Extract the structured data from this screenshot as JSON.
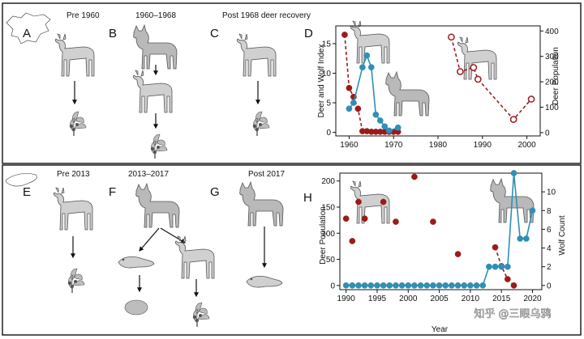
{
  "top_section": {
    "panels": [
      {
        "letter": "A",
        "title": "Pre 1960"
      },
      {
        "letter": "B",
        "title": "1960–1968"
      },
      {
        "letter": "C",
        "title": "Post 1968 deer recovery"
      }
    ],
    "chart_letter": "D"
  },
  "bottom_section": {
    "panels": [
      {
        "letter": "E",
        "title": "Pre 2013"
      },
      {
        "letter": "F",
        "title": "2013–2017"
      },
      {
        "letter": "G",
        "title": "Post 2017"
      }
    ],
    "chart_letter": "H"
  },
  "watermark": "知乎 @三眼乌鸦",
  "colors": {
    "deer": "#9b1b1b",
    "wolf": "#2f8fb5",
    "frame": "#111111"
  },
  "chart_data": [
    {
      "id": "D",
      "type": "scatter",
      "title": "",
      "xlabel": "",
      "ylabel_left": "Deer and Wolf Index",
      "ylabel_right": "Deer Population",
      "xlim": [
        1957,
        2003
      ],
      "ylim_left": [
        -0.6,
        18
      ],
      "ylim_right": [
        -13,
        420
      ],
      "x_ticks": [
        1960,
        1970,
        1980,
        1990,
        2000
      ],
      "y_ticks_left": [
        0,
        5,
        10,
        15
      ],
      "y_ticks_right": [
        0,
        100,
        200,
        300,
        400
      ],
      "series": [
        {
          "role": "deer",
          "axis": "left",
          "style": "filled-dashed",
          "x": [
            1959,
            1960,
            1961,
            1962,
            1963,
            1964,
            1965,
            1966,
            1967,
            1968,
            1969,
            1970,
            1971
          ],
          "y": [
            16.5,
            7.5,
            6,
            4,
            0.2,
            0.2,
            0.1,
            0.1,
            0.1,
            0.1,
            0.1,
            0.1,
            0.1
          ]
        },
        {
          "role": "wolf",
          "axis": "left",
          "style": "filled-solid",
          "x": [
            1960,
            1961,
            1963,
            1964,
            1965,
            1966,
            1967,
            1968,
            1969,
            1971
          ],
          "y": [
            4,
            5,
            11,
            13,
            11,
            3,
            2,
            1,
            0.3,
            0.8
          ]
        },
        {
          "role": "deer",
          "axis": "right",
          "style": "open-dashed",
          "x": [
            1983,
            1985,
            1988,
            1989,
            1997,
            2001
          ],
          "y": [
            376,
            240,
            256,
            210,
            52,
            132
          ]
        }
      ]
    },
    {
      "id": "H",
      "type": "scatter",
      "title": "",
      "xlabel": "Year",
      "ylabel_left": "Deer Population",
      "ylabel_right": "Wolf Count",
      "xlim": [
        1989,
        2021.5
      ],
      "ylim_left": [
        -8,
        215
      ],
      "ylim_right": [
        -0.45,
        12
      ],
      "x_ticks": [
        1990,
        1995,
        2000,
        2005,
        2010,
        2015,
        2020
      ],
      "y_ticks_left": [
        0,
        50,
        100,
        150,
        200
      ],
      "y_ticks_right": [
        0,
        2,
        4,
        6,
        8,
        10
      ],
      "series": [
        {
          "role": "deer",
          "axis": "left",
          "style": "filled-scatter",
          "x": [
            1990,
            1991,
            1992,
            1993,
            1996,
            1998,
            2001,
            2004,
            2008,
            2014,
            2015,
            2016,
            2017
          ],
          "y": [
            128,
            85,
            160,
            128,
            160,
            122,
            208,
            122,
            60,
            73,
            37,
            12,
            0
          ],
          "dashed_from_index": 9
        },
        {
          "role": "wolf",
          "axis": "right",
          "style": "filled-solid",
          "x": [
            1990,
            1991,
            1992,
            1993,
            1994,
            1995,
            1996,
            1997,
            1998,
            1999,
            2000,
            2001,
            2002,
            2003,
            2004,
            2005,
            2006,
            2007,
            2008,
            2009,
            2010,
            2011,
            2012,
            2013,
            2014,
            2015,
            2016,
            2017,
            2018,
            2019,
            2020
          ],
          "y": [
            0,
            0,
            0,
            0,
            0,
            0,
            0,
            0,
            0,
            0,
            0,
            0,
            0,
            0,
            0,
            0,
            0,
            0,
            0,
            0,
            0,
            0,
            0,
            2,
            2,
            2,
            2,
            12,
            5,
            5,
            8
          ]
        }
      ]
    }
  ]
}
